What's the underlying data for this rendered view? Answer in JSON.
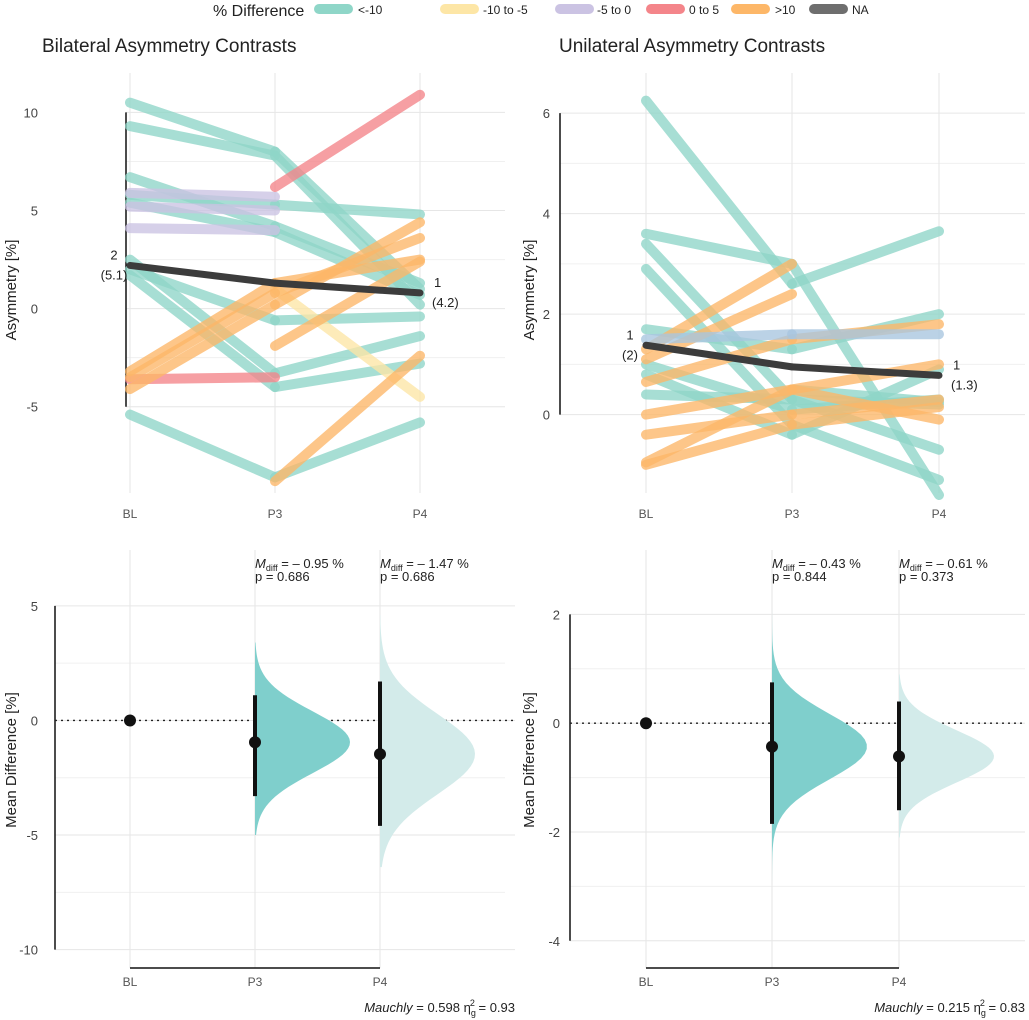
{
  "legend": {
    "title": "% Difference",
    "items": [
      {
        "label": "<-10",
        "color": "#8fd6c8"
      },
      {
        "label": "-10 to -5",
        "color": "#fde6a6"
      },
      {
        "label": "-5 to 0",
        "color": "#cbc3e3"
      },
      {
        "label": "0 to 5",
        "color": "#f4858a"
      },
      {
        "label": ">10",
        "color": "#fdb768"
      },
      {
        "label": "NA",
        "color": "#6e6e6e"
      }
    ]
  },
  "colors": {
    "teal_fill": "#7fcfcc",
    "teal_light": "#d3ebea",
    "mean_line": "#3c3c3c",
    "blue_line": "#a9c6e0",
    "grid": "#e6e6e6"
  },
  "chart_data": [
    {
      "id": "bilateral",
      "type": "line",
      "title": "Bilateral Asymmetry Contrasts",
      "xlabel": "",
      "ylabel": "Asymmetry [%]",
      "categories": [
        "BL",
        "P3",
        "P4"
      ],
      "yticks": [
        "10",
        "5",
        "0",
        "-5"
      ],
      "ytick_values": [
        10,
        5,
        0,
        -5
      ],
      "ylim": [
        -9.5,
        11.5
      ],
      "series": [
        {
          "group": "<-10",
          "values": [
            10.5,
            8.0,
            1.0
          ]
        },
        {
          "group": "<-10",
          "values": [
            9.3,
            7.8,
            0.2
          ]
        },
        {
          "group": "<-10",
          "values": [
            6.7,
            4.2,
            1.3
          ]
        },
        {
          "group": "<-10",
          "values": [
            5.8,
            5.3,
            4.8
          ]
        },
        {
          "group": "<-10",
          "values": [
            5.4,
            3.9,
            0.7
          ]
        },
        {
          "group": "<-10",
          "values": [
            2.5,
            -3.3,
            -1.4
          ]
        },
        {
          "group": "<-10",
          "values": [
            2.0,
            -0.6,
            -0.4
          ]
        },
        {
          "group": "<-10",
          "values": [
            1.7,
            -4.0,
            -2.8
          ]
        },
        {
          "group": "<-10",
          "values": [
            -5.4,
            -8.6,
            -5.8
          ]
        },
        {
          "group": "-10 to -5",
          "values": [
            null,
            1.0,
            -4.5
          ]
        },
        {
          "group": "-5 to 0",
          "values": [
            5.9,
            5.7,
            null
          ]
        },
        {
          "group": "-5 to 0",
          "values": [
            5.2,
            5.0,
            null
          ]
        },
        {
          "group": "-5 to 0",
          "values": [
            4.1,
            4.0,
            null
          ]
        },
        {
          "group": "0 to 5",
          "values": [
            null,
            6.2,
            10.9
          ]
        },
        {
          "group": "0 to 5",
          "values": [
            -3.6,
            -3.5,
            null
          ]
        },
        {
          "group": ">10",
          "values": [
            -3.2,
            1.3,
            2.5
          ]
        },
        {
          "group": ">10",
          "values": [
            -3.5,
            0.8,
            3.6
          ]
        },
        {
          "group": ">10",
          "values": [
            -4.1,
            0.2,
            4.4
          ]
        },
        {
          "group": ">10",
          "values": [
            null,
            -1.9,
            2.4
          ]
        },
        {
          "group": ">10",
          "values": [
            null,
            -8.8,
            -2.4
          ]
        }
      ],
      "mean": {
        "group": "NA",
        "values": [
          2.2,
          1.3,
          0.8
        ]
      },
      "annotations": [
        {
          "line1": "2",
          "line2": "(5.1)",
          "x": "BL",
          "side": "left"
        },
        {
          "line1": "1",
          "line2": "(4.2)",
          "x": "P4",
          "side": "right"
        }
      ]
    },
    {
      "id": "unilateral",
      "type": "line",
      "title": "Unilateral Asymmetry Contrasts",
      "xlabel": "",
      "ylabel": "Asymmetry [%]",
      "categories": [
        "BL",
        "P3",
        "P4"
      ],
      "yticks": [
        "6",
        "4",
        "2",
        "0"
      ],
      "ytick_values": [
        6,
        4,
        2,
        0
      ],
      "ylim": [
        -1.6,
        6.6
      ],
      "series": [
        {
          "group": "<-10",
          "values": [
            6.25,
            2.6,
            3.65
          ]
        },
        {
          "group": "<-10",
          "values": [
            3.6,
            3.0,
            -1.6
          ]
        },
        {
          "group": "<-10",
          "values": [
            3.4,
            0.3,
            -0.7
          ]
        },
        {
          "group": "<-10",
          "values": [
            2.9,
            -0.2,
            -1.3
          ]
        },
        {
          "group": "<-10",
          "values": [
            1.7,
            1.3,
            2.0
          ]
        },
        {
          "group": "<-10",
          "values": [
            1.0,
            0.1,
            0.3
          ]
        },
        {
          "group": "<-10",
          "values": [
            0.8,
            -0.4,
            0.9
          ]
        },
        {
          "group": "<-10",
          "values": [
            0.4,
            0.3,
            0.2
          ]
        },
        {
          "group": "<-10",
          "values": [
            null,
            0.5,
            0.25
          ]
        },
        {
          "group": ">10",
          "values": [
            1.3,
            3.0,
            null
          ]
        },
        {
          "group": ">10",
          "values": [
            1.1,
            2.4,
            null
          ]
        },
        {
          "group": ">10",
          "values": [
            0.65,
            1.5,
            1.8
          ]
        },
        {
          "group": ">10",
          "values": [
            0.0,
            0.5,
            1.0
          ]
        },
        {
          "group": ">10",
          "values": [
            -0.4,
            0.0,
            0.3
          ]
        },
        {
          "group": ">10",
          "values": [
            -0.95,
            0.5,
            -0.1
          ]
        },
        {
          "group": ">10",
          "values": [
            -1.0,
            -0.2,
            0.15
          ]
        }
      ],
      "extra_lines": [
        {
          "group": "blue",
          "values": [
            1.5,
            1.6,
            1.6
          ]
        }
      ],
      "mean": {
        "group": "NA",
        "values": [
          1.38,
          0.95,
          0.78
        ]
      },
      "annotations": [
        {
          "line1": "1",
          "line2": "(2)",
          "x": "BL",
          "side": "left"
        },
        {
          "line1": "1",
          "line2": "(1.3)",
          "x": "P4",
          "side": "right"
        }
      ]
    },
    {
      "id": "bilateral_diff",
      "type": "estimation",
      "ylabel": "Mean Difference [%]",
      "categories": [
        "BL",
        "P3",
        "P4"
      ],
      "yticks": [
        "5",
        "0",
        "-5",
        "-10"
      ],
      "ytick_values": [
        5,
        0,
        -5,
        -10
      ],
      "ylim": [
        -10.8,
        7.0
      ],
      "points": [
        {
          "x": "BL",
          "mean": 0,
          "lo": null,
          "hi": null
        },
        {
          "x": "P3",
          "mean": -0.95,
          "lo": -3.3,
          "hi": 1.1,
          "mdiff": "– 0.95 %",
          "p": "p = 0.686",
          "dist_top": 3.4,
          "dist_bot": -5.0,
          "sd": 1.35,
          "shade": "dark"
        },
        {
          "x": "P4",
          "mean": -1.47,
          "lo": -4.6,
          "hi": 1.7,
          "mdiff": "– 1.47 %",
          "p": "p = 0.686",
          "dist_top": 4.6,
          "dist_bot": -6.4,
          "sd": 1.75,
          "shade": "light"
        }
      ],
      "footer": {
        "test": "Mauchly",
        "value": " = 0.598 ",
        "eta": "η",
        "sub": "g",
        "sup": "2",
        "eta_value": " = 0.93"
      }
    },
    {
      "id": "unilateral_diff",
      "type": "estimation",
      "ylabel": "Mean Difference [%]",
      "categories": [
        "BL",
        "P3",
        "P4"
      ],
      "yticks": [
        "2",
        "0",
        "-2",
        "-4"
      ],
      "ytick_values": [
        2,
        0,
        -2,
        -4
      ],
      "ylim": [
        -4.5,
        3.0
      ],
      "points": [
        {
          "x": "BL",
          "mean": 0,
          "lo": null,
          "hi": null
        },
        {
          "x": "P3",
          "mean": -0.43,
          "lo": -1.85,
          "hi": 0.75,
          "mdiff": "– 0.43 %",
          "p": "p = 0.844",
          "dist_top": 2.3,
          "dist_bot": -2.9,
          "sd": 0.6,
          "shade": "dark"
        },
        {
          "x": "P4",
          "mean": -0.61,
          "lo": -1.6,
          "hi": 0.4,
          "mdiff": "– 0.61 %",
          "p": "p = 0.373",
          "dist_top": 0.9,
          "dist_bot": -2.1,
          "sd": 0.48,
          "shade": "light"
        }
      ],
      "footer": {
        "test": "Mauchly",
        "value": " = 0.215 ",
        "eta": "η",
        "sub": "g",
        "sup": "2",
        "eta_value": " = 0.83"
      }
    }
  ]
}
